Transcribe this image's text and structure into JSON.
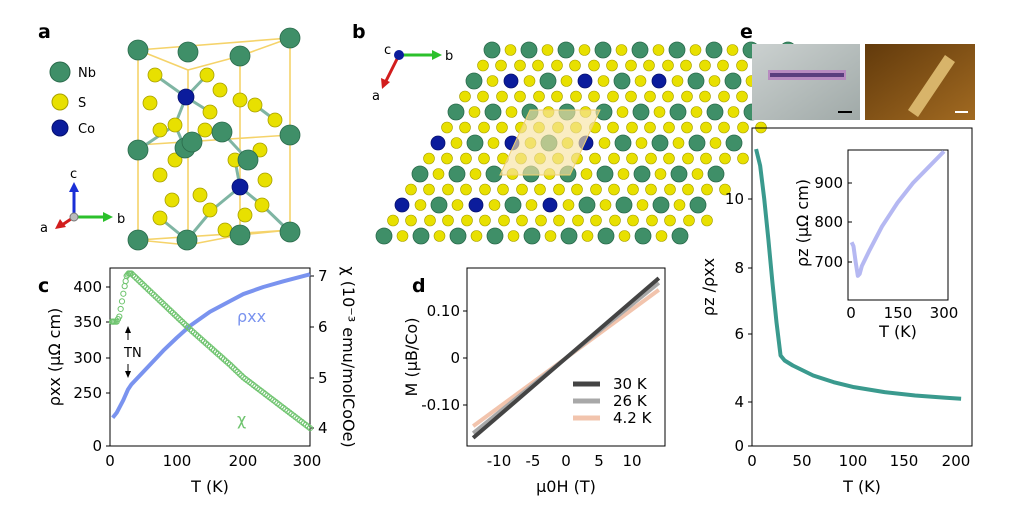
{
  "panels": {
    "a": {
      "letter": "a",
      "legend": [
        {
          "label": "Nb",
          "color": "#3f8f68"
        },
        {
          "label": "S",
          "color": "#e8e000"
        },
        {
          "label": "Co",
          "color": "#0b1c9c"
        }
      ],
      "axes": {
        "c": "c",
        "a": "a",
        "b": "b"
      }
    },
    "b": {
      "letter": "b",
      "axes": {
        "c": "c",
        "b": "b",
        "a": "a"
      }
    },
    "c": {
      "letter": "c",
      "left_ticks": [
        "400",
        "350",
        "300",
        "250",
        "0"
      ],
      "right_ticks": [
        "7",
        "6",
        "5",
        "4"
      ],
      "x_ticks": [
        "0",
        "100",
        "200",
        "300"
      ],
      "xlabel": "T (K)",
      "ylabel_left": "ρxx (μΩ cm)",
      "ylabel_right": "χ (10⁻³ emu/molCoOe)",
      "rho_label": "ρxx",
      "chi_label": "χ",
      "tn_label": "TN"
    },
    "d": {
      "letter": "d",
      "y_ticks": [
        "0.10",
        "0",
        "-0.10"
      ],
      "x_ticks": [
        "-10",
        "-5",
        "0",
        "5",
        "10"
      ],
      "xlabel": "μ0H (T)",
      "ylabel": "M (μB/Co)",
      "legend": [
        {
          "label": "30 K",
          "color": "#444444"
        },
        {
          "label": "26 K",
          "color": "#a8a8a8"
        },
        {
          "label": "4.2 K",
          "color": "#f2c4ad"
        }
      ]
    },
    "e": {
      "letter": "e",
      "y_ticks": [
        "10",
        "8",
        "6",
        "4",
        "0"
      ],
      "x_ticks": [
        "0",
        "50",
        "100",
        "150",
        "200"
      ],
      "xlabel": "T (K)",
      "ylabel": "ρz /ρxx",
      "inset": {
        "y_ticks": [
          "900",
          "800",
          "700"
        ],
        "x_ticks": [
          "0",
          "150",
          "300"
        ],
        "xlabel": "T (K)",
        "ylabel": "ρz (μΩ cm)"
      }
    }
  },
  "chart_data": [
    {
      "type": "line",
      "panel": "c",
      "xlabel": "T (K)",
      "ylabel": "ρxx (μΩ cm)",
      "xlim": [
        0,
        300
      ],
      "series": [
        {
          "name": "ρxx",
          "color": "#7a93ef",
          "axis": "left",
          "x": [
            4,
            10,
            20,
            27,
            32,
            40,
            60,
            80,
            100,
            120,
            150,
            180,
            200,
            230,
            260,
            300
          ],
          "y": [
            215,
            222,
            240,
            255,
            262,
            270,
            290,
            310,
            328,
            345,
            365,
            380,
            390,
            400,
            408,
            418
          ]
        },
        {
          "name": "χ",
          "color": "#6fc46f",
          "axis": "right",
          "x": [
            3,
            6,
            10,
            14,
            18,
            22,
            25,
            28,
            32,
            40,
            60,
            80,
            100,
            120,
            150,
            180,
            200,
            230,
            260,
            300
          ],
          "y": [
            6.1,
            6.1,
            6.1,
            6.2,
            6.5,
            6.8,
            7.0,
            7.05,
            7.05,
            6.95,
            6.7,
            6.45,
            6.2,
            5.95,
            5.6,
            5.25,
            5.0,
            4.7,
            4.4,
            4.0
          ]
        }
      ]
    },
    {
      "type": "line",
      "panel": "d",
      "xlabel": "μ0H (T)",
      "ylabel": "M (μB/Co)",
      "xlim": [
        -14,
        14
      ],
      "series": [
        {
          "name": "30 K",
          "color": "#444444",
          "x": [
            -14,
            14
          ],
          "y": [
            -0.17,
            0.17
          ]
        },
        {
          "name": "26 K",
          "color": "#a8a8a8",
          "x": [
            -14,
            14
          ],
          "y": [
            -0.16,
            0.16
          ]
        },
        {
          "name": "4.2 K",
          "color": "#f2c4ad",
          "x": [
            -14,
            14
          ],
          "y": [
            -0.145,
            0.145
          ]
        }
      ]
    },
    {
      "type": "line",
      "panel": "e",
      "xlabel": "T (K)",
      "ylabel": "ρz /ρxx",
      "xlim": [
        0,
        210
      ],
      "series": [
        {
          "name": "ρz/ρxx",
          "color": "#3a9a8e",
          "x": [
            4,
            8,
            12,
            16,
            20,
            24,
            28,
            32,
            40,
            60,
            80,
            100,
            130,
            160,
            190,
            205
          ],
          "y": [
            11.5,
            11.0,
            10.0,
            8.8,
            7.5,
            6.3,
            5.3,
            5.15,
            5.0,
            4.7,
            4.5,
            4.35,
            4.2,
            4.1,
            4.03,
            4.0
          ]
        }
      ]
    },
    {
      "type": "line",
      "panel": "e-inset",
      "xlabel": "T (K)",
      "ylabel": "ρz (μΩ cm)",
      "series": [
        {
          "name": "ρz",
          "color": "#b5b8f2",
          "x": [
            2,
            8,
            15,
            22,
            28,
            35,
            60,
            100,
            150,
            200,
            250,
            300
          ],
          "y": [
            750,
            740,
            700,
            665,
            670,
            690,
            730,
            790,
            850,
            900,
            940,
            980
          ]
        }
      ]
    }
  ]
}
